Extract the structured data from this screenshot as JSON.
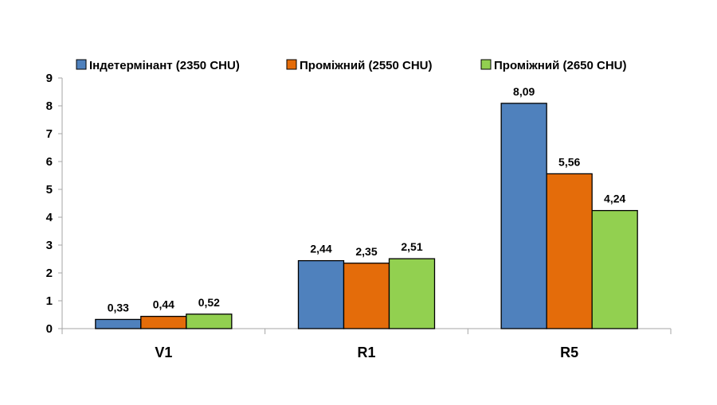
{
  "chart_data": {
    "type": "bar",
    "categories": [
      "V1",
      "R1",
      "R5"
    ],
    "series": [
      {
        "name": "Індетермінант  (2350 CHU)",
        "color": "#4f81bd",
        "values": [
          0.33,
          2.44,
          8.09
        ],
        "labels": [
          "0,33",
          "2,44",
          "8,09"
        ]
      },
      {
        "name": "Проміжний  (2550 CHU)",
        "color": "#e46c0a",
        "values": [
          0.44,
          2.35,
          5.56
        ],
        "labels": [
          "0,44",
          "2,35",
          "5,56"
        ]
      },
      {
        "name": "Проміжний  (2650 CHU)",
        "color": "#92d050",
        "values": [
          0.52,
          2.51,
          4.24
        ],
        "labels": [
          "0,52",
          "2,51",
          "4,24"
        ]
      }
    ],
    "ylim": [
      0,
      9
    ],
    "yticks": [
      0,
      1,
      2,
      3,
      4,
      5,
      6,
      7,
      8,
      9
    ],
    "grid": false,
    "legend": "top"
  }
}
